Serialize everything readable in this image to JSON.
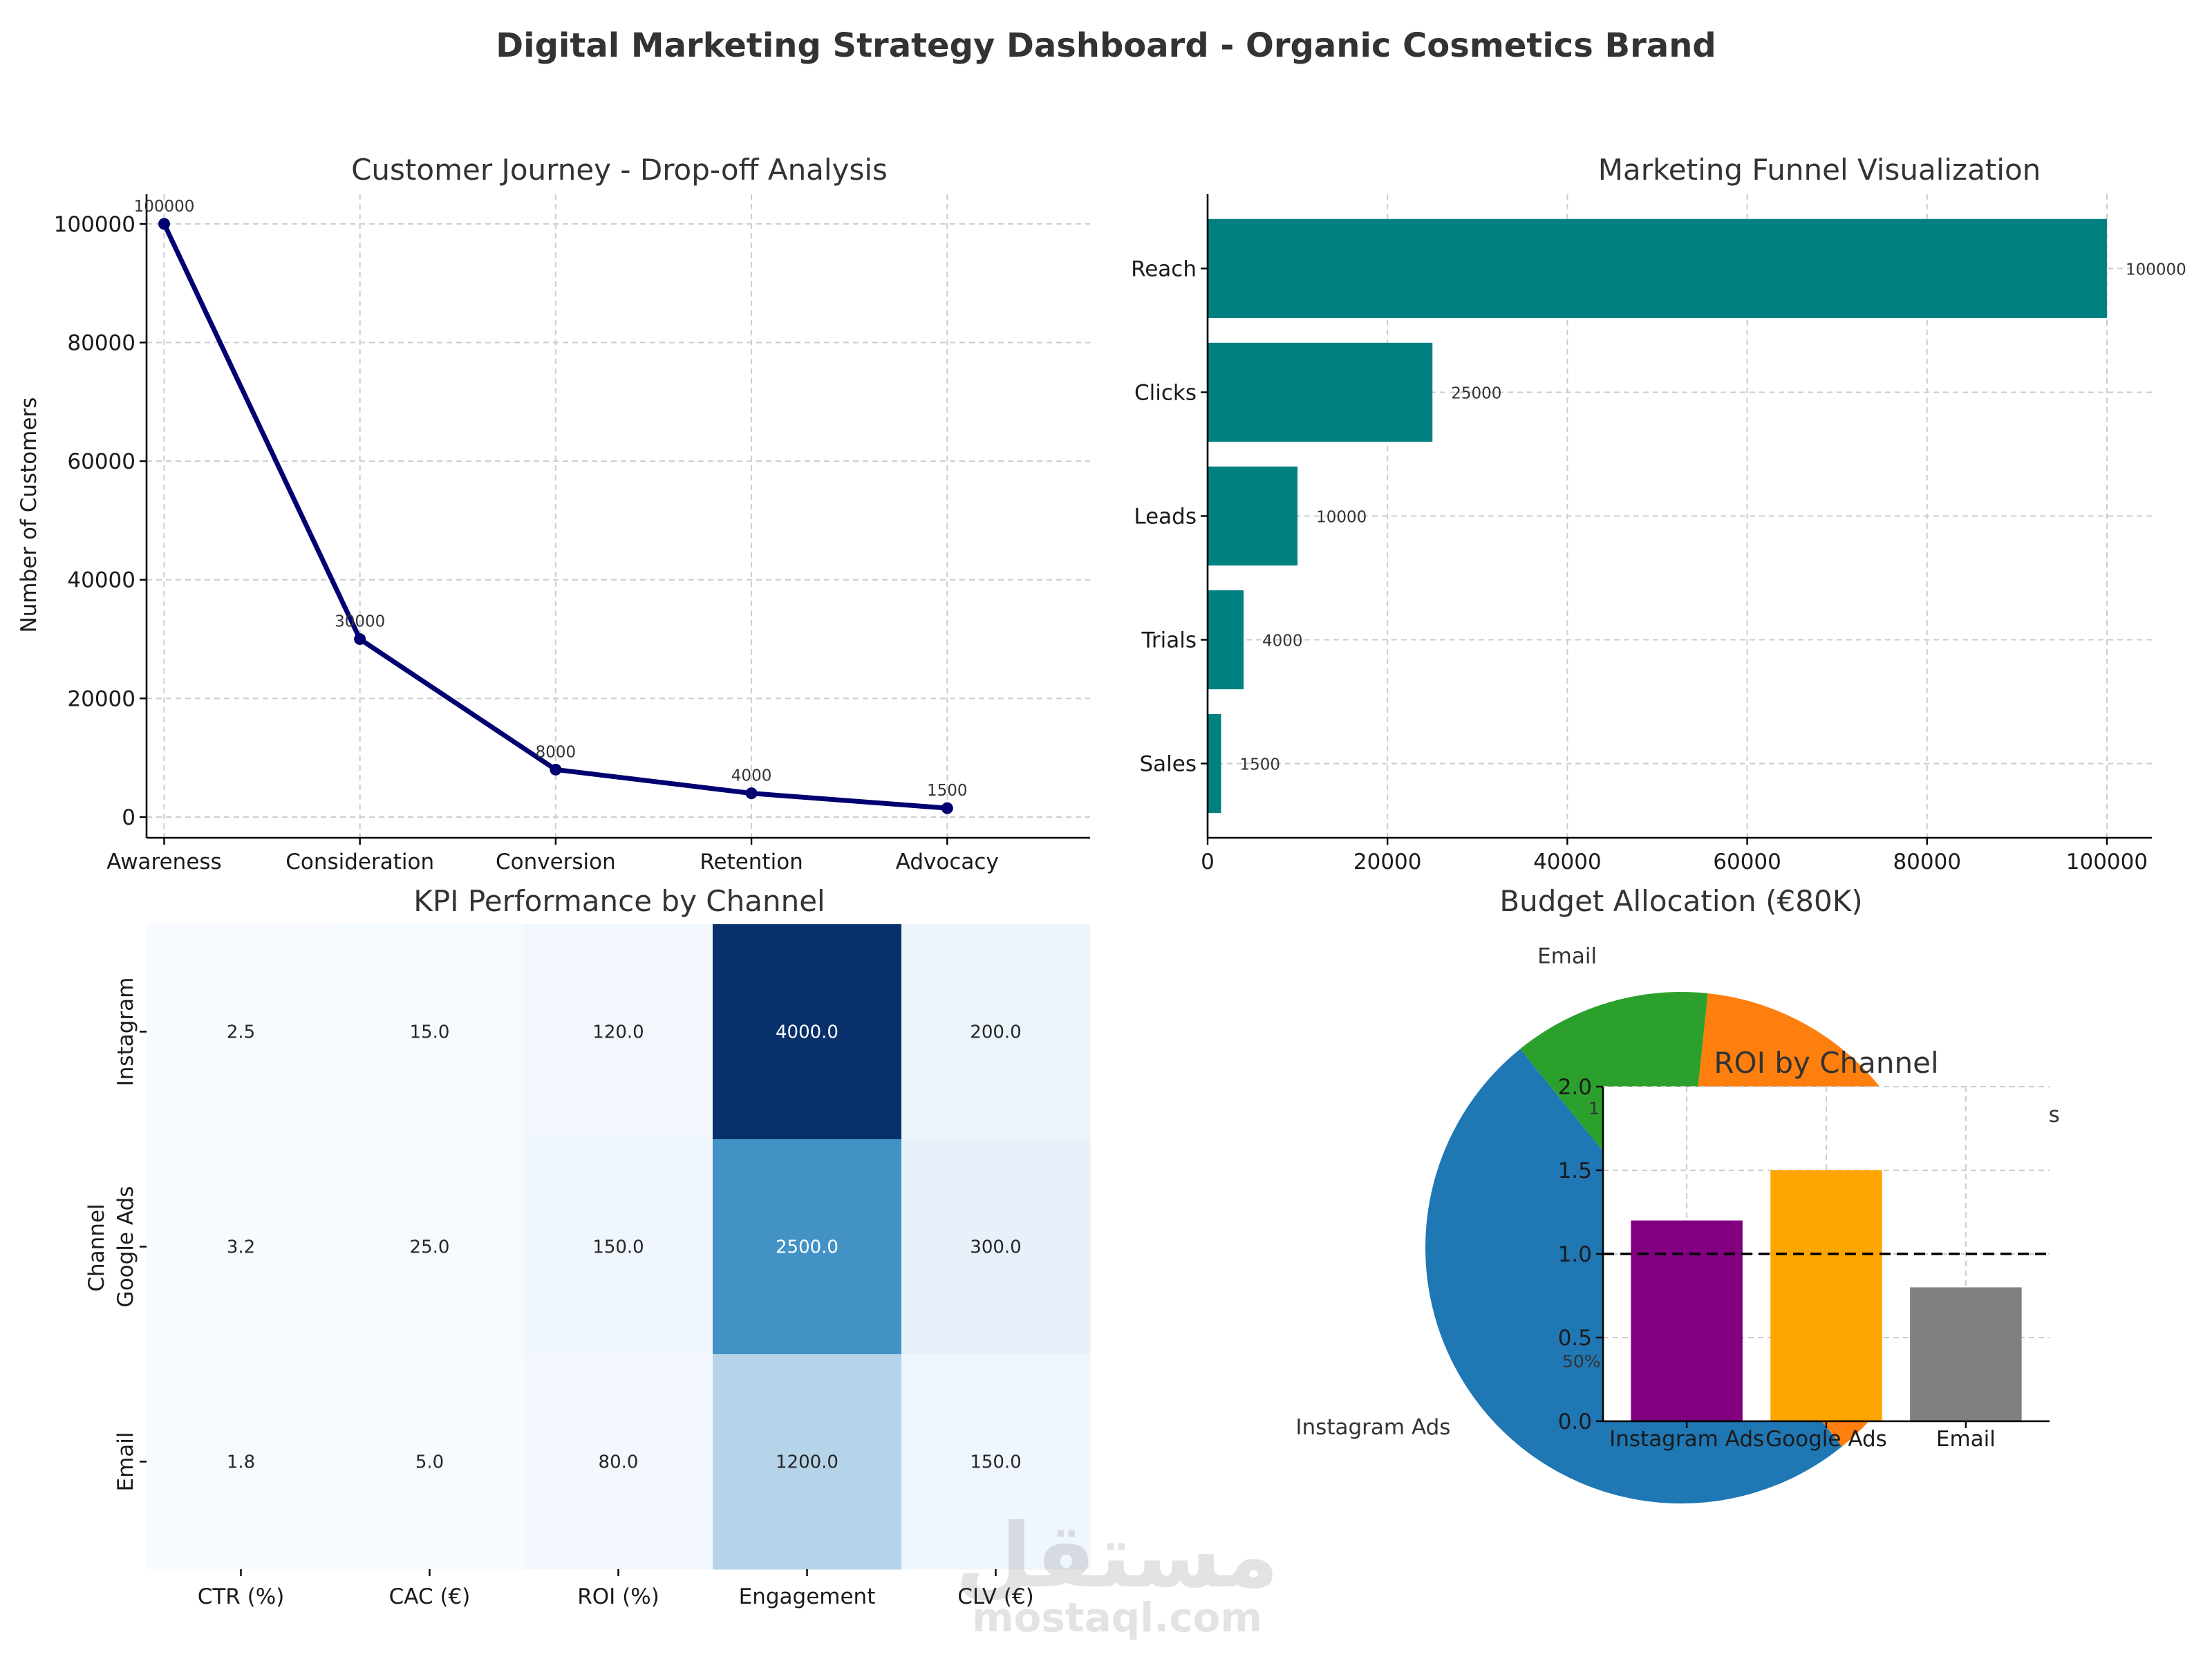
{
  "page_title": "Digital Marketing Strategy Dashboard - Organic Cosmetics Brand",
  "watermark": {
    "arabic": "مستقل",
    "latin": "mostaql.com"
  },
  "chart_data": [
    {
      "type": "line",
      "title": "Customer Journey - Drop-off Analysis",
      "xlabel": "",
      "ylabel": "Number of Customers",
      "categories": [
        "Awareness",
        "Consideration",
        "Conversion",
        "Retention",
        "Advocacy"
      ],
      "values": [
        100000,
        30000,
        8000,
        4000,
        1500
      ],
      "ylim": [
        -3500,
        105000
      ],
      "yticks": [
        0,
        20000,
        40000,
        60000,
        80000,
        100000
      ],
      "grid": true,
      "color": "#000070"
    },
    {
      "type": "bar",
      "orientation": "horizontal",
      "title": "Marketing Funnel Visualization",
      "categories": [
        "Reach",
        "Clicks",
        "Leads",
        "Trials",
        "Sales"
      ],
      "values": [
        100000,
        25000,
        10000,
        4000,
        1500
      ],
      "xlim": [
        0,
        105000
      ],
      "xticks": [
        0,
        20000,
        40000,
        60000,
        80000,
        100000
      ],
      "grid": true,
      "color": "#008080"
    },
    {
      "type": "heatmap",
      "title": "KPI Performance by Channel",
      "ylabel": "Channel",
      "columns": [
        "CTR (%)",
        "CAC (€)",
        "ROI (%)",
        "Engagement",
        "CLV (€)"
      ],
      "rows": [
        "Instagram",
        "Google Ads",
        "Email"
      ],
      "cells": [
        [
          "2.5",
          "15.0",
          "120.0",
          "4000.0",
          "200.0"
        ],
        [
          "3.2",
          "25.0",
          "150.0",
          "2500.0",
          "300.0"
        ],
        [
          "1.8",
          "5.0",
          "80.0",
          "1200.0",
          "150.0"
        ]
      ],
      "values": [
        [
          2.5,
          15.0,
          120.0,
          4000.0,
          200.0
        ],
        [
          3.2,
          25.0,
          150.0,
          2500.0,
          300.0
        ],
        [
          1.8,
          5.0,
          80.0,
          1200.0,
          150.0
        ]
      ],
      "colormap": "Blues"
    },
    {
      "type": "pie",
      "title": "Budget Allocation (€80K)",
      "labels": [
        "Instagram Ads",
        "Google Ads",
        "Email"
      ],
      "values": [
        50,
        37.5,
        12.5
      ],
      "colors": [
        "#1f77b4",
        "#ff7f0e",
        "#2ca02c"
      ],
      "visible_pct_label": "50%",
      "visible_pct_fragment": "1",
      "visible_label_fragment": "ls"
    },
    {
      "type": "bar",
      "title": "ROI by Channel",
      "categories": [
        "Instagram Ads",
        "Google Ads",
        "Email"
      ],
      "values": [
        1.2,
        1.5,
        0.8
      ],
      "colors": [
        "#800080",
        "#ffa500",
        "#808080"
      ],
      "ylim": [
        0,
        2.0
      ],
      "yticks": [
        "0.0",
        "0.5",
        "1.0",
        "1.5",
        "2.0"
      ],
      "reference_line": 1.0,
      "grid": true
    }
  ]
}
